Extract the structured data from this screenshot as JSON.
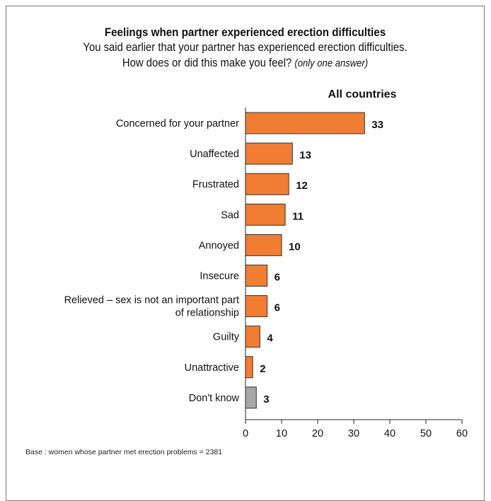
{
  "chart_data": {
    "type": "bar",
    "orientation": "horizontal",
    "title": "Feelings when partner experienced erection difficulties",
    "subtitle_line1": "You said earlier that your partner has experienced erection difficulties.",
    "subtitle_line2": "How does or did this make you feel?",
    "subtitle_note": "(only one answer)",
    "series_label": "All countries",
    "categories": [
      "Concerned for your partner",
      "Unaffected",
      "Frustrated",
      "Sad",
      "Annoyed",
      "Insecure",
      "Relieved – sex is not an important part\nof relationship",
      "Guilty",
      "Unattractive",
      "Don't know"
    ],
    "values": [
      33,
      13,
      12,
      11,
      10,
      6,
      6,
      4,
      2,
      3
    ],
    "bar_colors": [
      "#f07d32",
      "#f07d32",
      "#f07d32",
      "#f07d32",
      "#f07d32",
      "#f07d32",
      "#f07d32",
      "#f07d32",
      "#f07d32",
      "#a6a6a6"
    ],
    "xlim": [
      0,
      60
    ],
    "xticks": [
      0,
      10,
      20,
      30,
      40,
      50,
      60
    ],
    "grid": false,
    "footnote": "Base : women whose partner met erection problems = 2381"
  }
}
